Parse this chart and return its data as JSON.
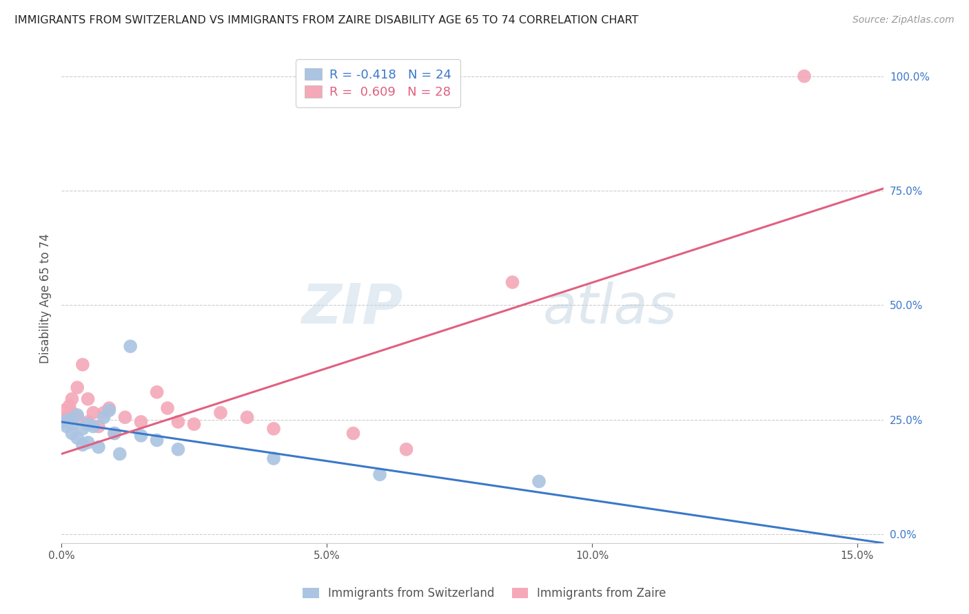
{
  "title": "IMMIGRANTS FROM SWITZERLAND VS IMMIGRANTS FROM ZAIRE DISABILITY AGE 65 TO 74 CORRELATION CHART",
  "source": "Source: ZipAtlas.com",
  "ylabel": "Disability Age 65 to 74",
  "xlim": [
    0.0,
    0.155
  ],
  "ylim": [
    -0.02,
    1.05
  ],
  "xtick_vals": [
    0.0,
    0.05,
    0.1,
    0.15
  ],
  "xticklabels": [
    "0.0%",
    "5.0%",
    "10.0%",
    "15.0%"
  ],
  "ytick_vals": [
    0.0,
    0.25,
    0.5,
    0.75,
    1.0
  ],
  "yticklabels_right": [
    "0.0%",
    "25.0%",
    "50.0%",
    "75.0%",
    "100.0%"
  ],
  "switzerland_color": "#aac4e2",
  "zaire_color": "#f4a8b8",
  "switzerland_line_color": "#3a78c9",
  "zaire_line_color": "#e06080",
  "watermark": "ZIPatlas",
  "sw_line_x0": 0.0,
  "sw_line_y0": 0.245,
  "sw_line_x1": 0.155,
  "sw_line_y1": -0.02,
  "za_line_x0": 0.0,
  "za_line_y0": 0.175,
  "za_line_x1": 0.155,
  "za_line_y1": 0.755,
  "switzerland_x": [
    0.0005,
    0.001,
    0.0015,
    0.002,
    0.002,
    0.003,
    0.003,
    0.004,
    0.004,
    0.005,
    0.005,
    0.006,
    0.007,
    0.008,
    0.009,
    0.01,
    0.011,
    0.013,
    0.015,
    0.018,
    0.022,
    0.04,
    0.06,
    0.09
  ],
  "switzerland_y": [
    0.245,
    0.235,
    0.25,
    0.22,
    0.24,
    0.26,
    0.21,
    0.23,
    0.195,
    0.24,
    0.2,
    0.235,
    0.19,
    0.255,
    0.27,
    0.22,
    0.175,
    0.41,
    0.215,
    0.205,
    0.185,
    0.165,
    0.13,
    0.115
  ],
  "zaire_x": [
    0.0005,
    0.001,
    0.0015,
    0.002,
    0.002,
    0.003,
    0.003,
    0.004,
    0.005,
    0.005,
    0.006,
    0.007,
    0.008,
    0.009,
    0.01,
    0.012,
    0.015,
    0.018,
    0.02,
    0.022,
    0.025,
    0.03,
    0.035,
    0.04,
    0.055,
    0.065,
    0.085,
    0.14
  ],
  "zaire_y": [
    0.27,
    0.255,
    0.28,
    0.295,
    0.265,
    0.32,
    0.255,
    0.37,
    0.245,
    0.295,
    0.265,
    0.235,
    0.265,
    0.275,
    0.22,
    0.255,
    0.245,
    0.31,
    0.275,
    0.245,
    0.24,
    0.265,
    0.255,
    0.23,
    0.22,
    0.185,
    0.55,
    1.0
  ],
  "legend_line1": "R = -0.418   N = 24",
  "legend_line2": "R =  0.609   N = 28",
  "bottom_legend_sw": "Immigrants from Switzerland",
  "bottom_legend_za": "Immigrants from Zaire"
}
